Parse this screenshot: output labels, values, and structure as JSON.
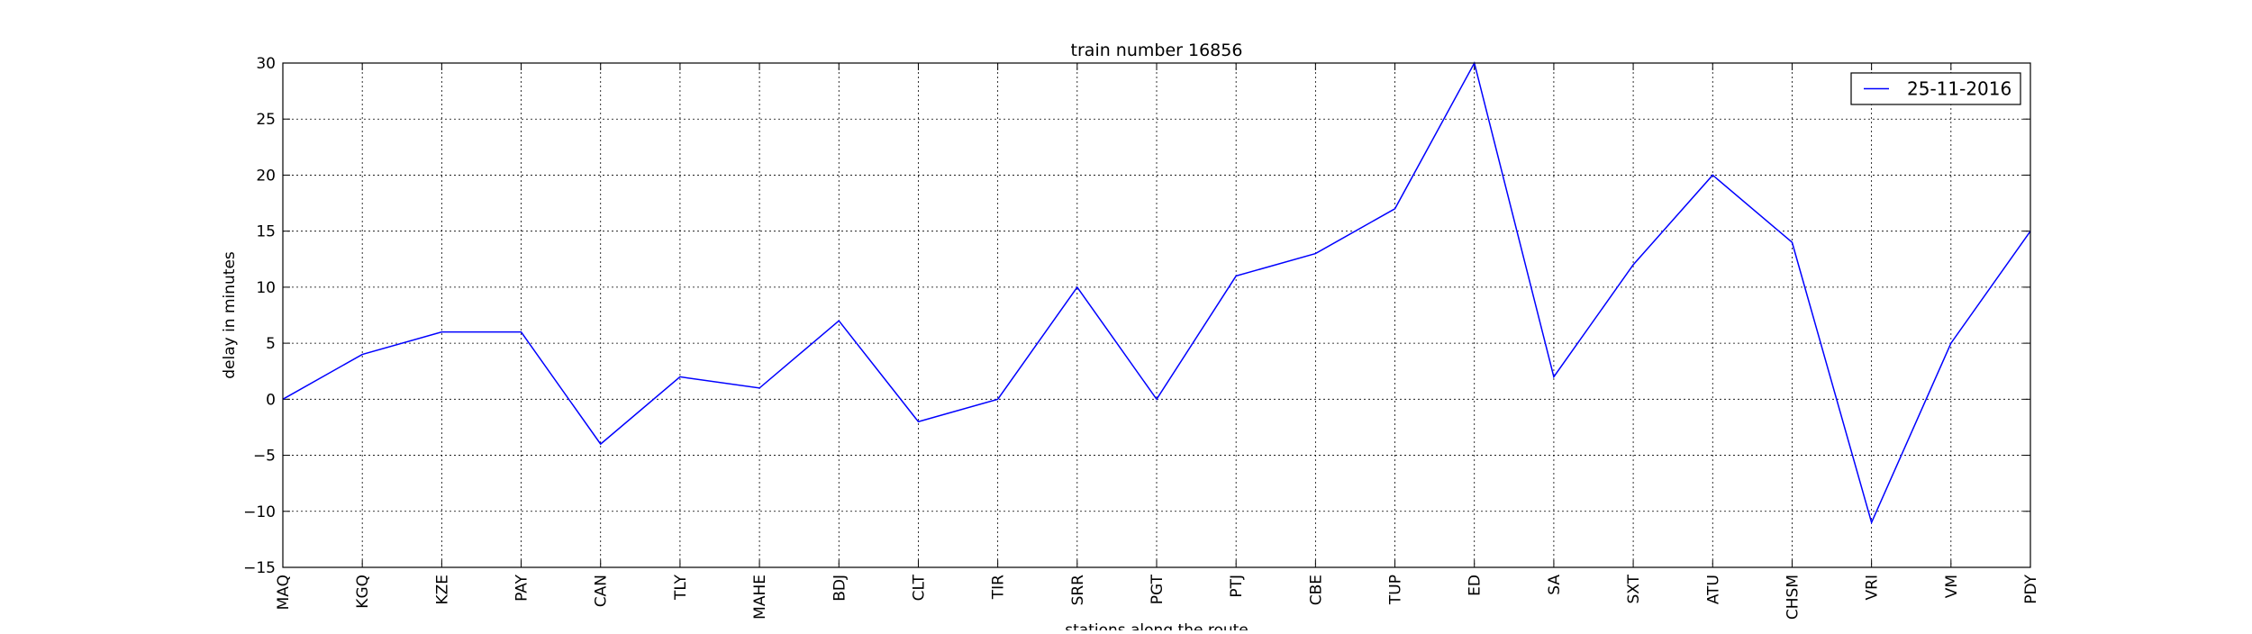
{
  "chart_data": {
    "type": "line",
    "title": "train number 16856",
    "xlabel": "stations along the route",
    "ylabel": "delay in minutes",
    "categories": [
      "MAQ",
      "KGQ",
      "KZE",
      "PAY",
      "CAN",
      "TLY",
      "MAHE",
      "BDJ",
      "CLT",
      "TIR",
      "SRR",
      "PGT",
      "PTJ",
      "CBE",
      "TUP",
      "ED",
      "SA",
      "SXT",
      "ATU",
      "CHSM",
      "VRI",
      "VM",
      "PDY"
    ],
    "series": [
      {
        "name": "25-11-2016",
        "color": "#0000ff",
        "values": [
          0,
          4,
          6,
          6,
          -4,
          2,
          1,
          7,
          -2,
          0,
          10,
          0,
          11,
          13,
          17,
          30,
          2,
          12,
          20,
          14,
          -11,
          5,
          15
        ]
      }
    ],
    "ylim": [
      -15,
      30
    ],
    "yticks": [
      -15,
      -10,
      -5,
      0,
      5,
      10,
      15,
      20,
      25,
      30
    ],
    "grid": true,
    "legend_position": "top-right"
  }
}
